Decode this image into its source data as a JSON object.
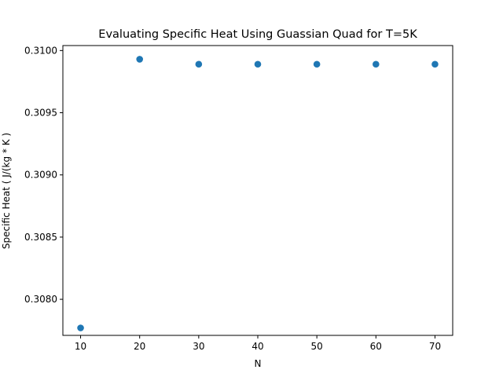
{
  "chart_data": {
    "type": "scatter",
    "title": "Evaluating Specific Heat Using Guassian Quad for T=5K",
    "xlabel": "N",
    "ylabel": "Specific Heat ( J/(kg * K )",
    "xlim": [
      7,
      73
    ],
    "ylim": [
      0.30771,
      0.31004
    ],
    "x_ticks": [
      10,
      20,
      30,
      40,
      50,
      60,
      70
    ],
    "x_tick_labels": [
      "10",
      "20",
      "30",
      "40",
      "50",
      "60",
      "70"
    ],
    "y_ticks": [
      0.308,
      0.3085,
      0.309,
      0.3095,
      0.31
    ],
    "y_tick_labels": [
      "0.3080",
      "0.3085",
      "0.3090",
      "0.3095",
      "0.3100"
    ],
    "grid": false,
    "series": [
      {
        "color": "#1f77b4",
        "x": [
          10,
          20,
          30,
          40,
          50,
          60,
          70
        ],
        "y": [
          0.30777,
          0.30993,
          0.30989,
          0.30989,
          0.30989,
          0.30989,
          0.30989
        ]
      }
    ]
  }
}
